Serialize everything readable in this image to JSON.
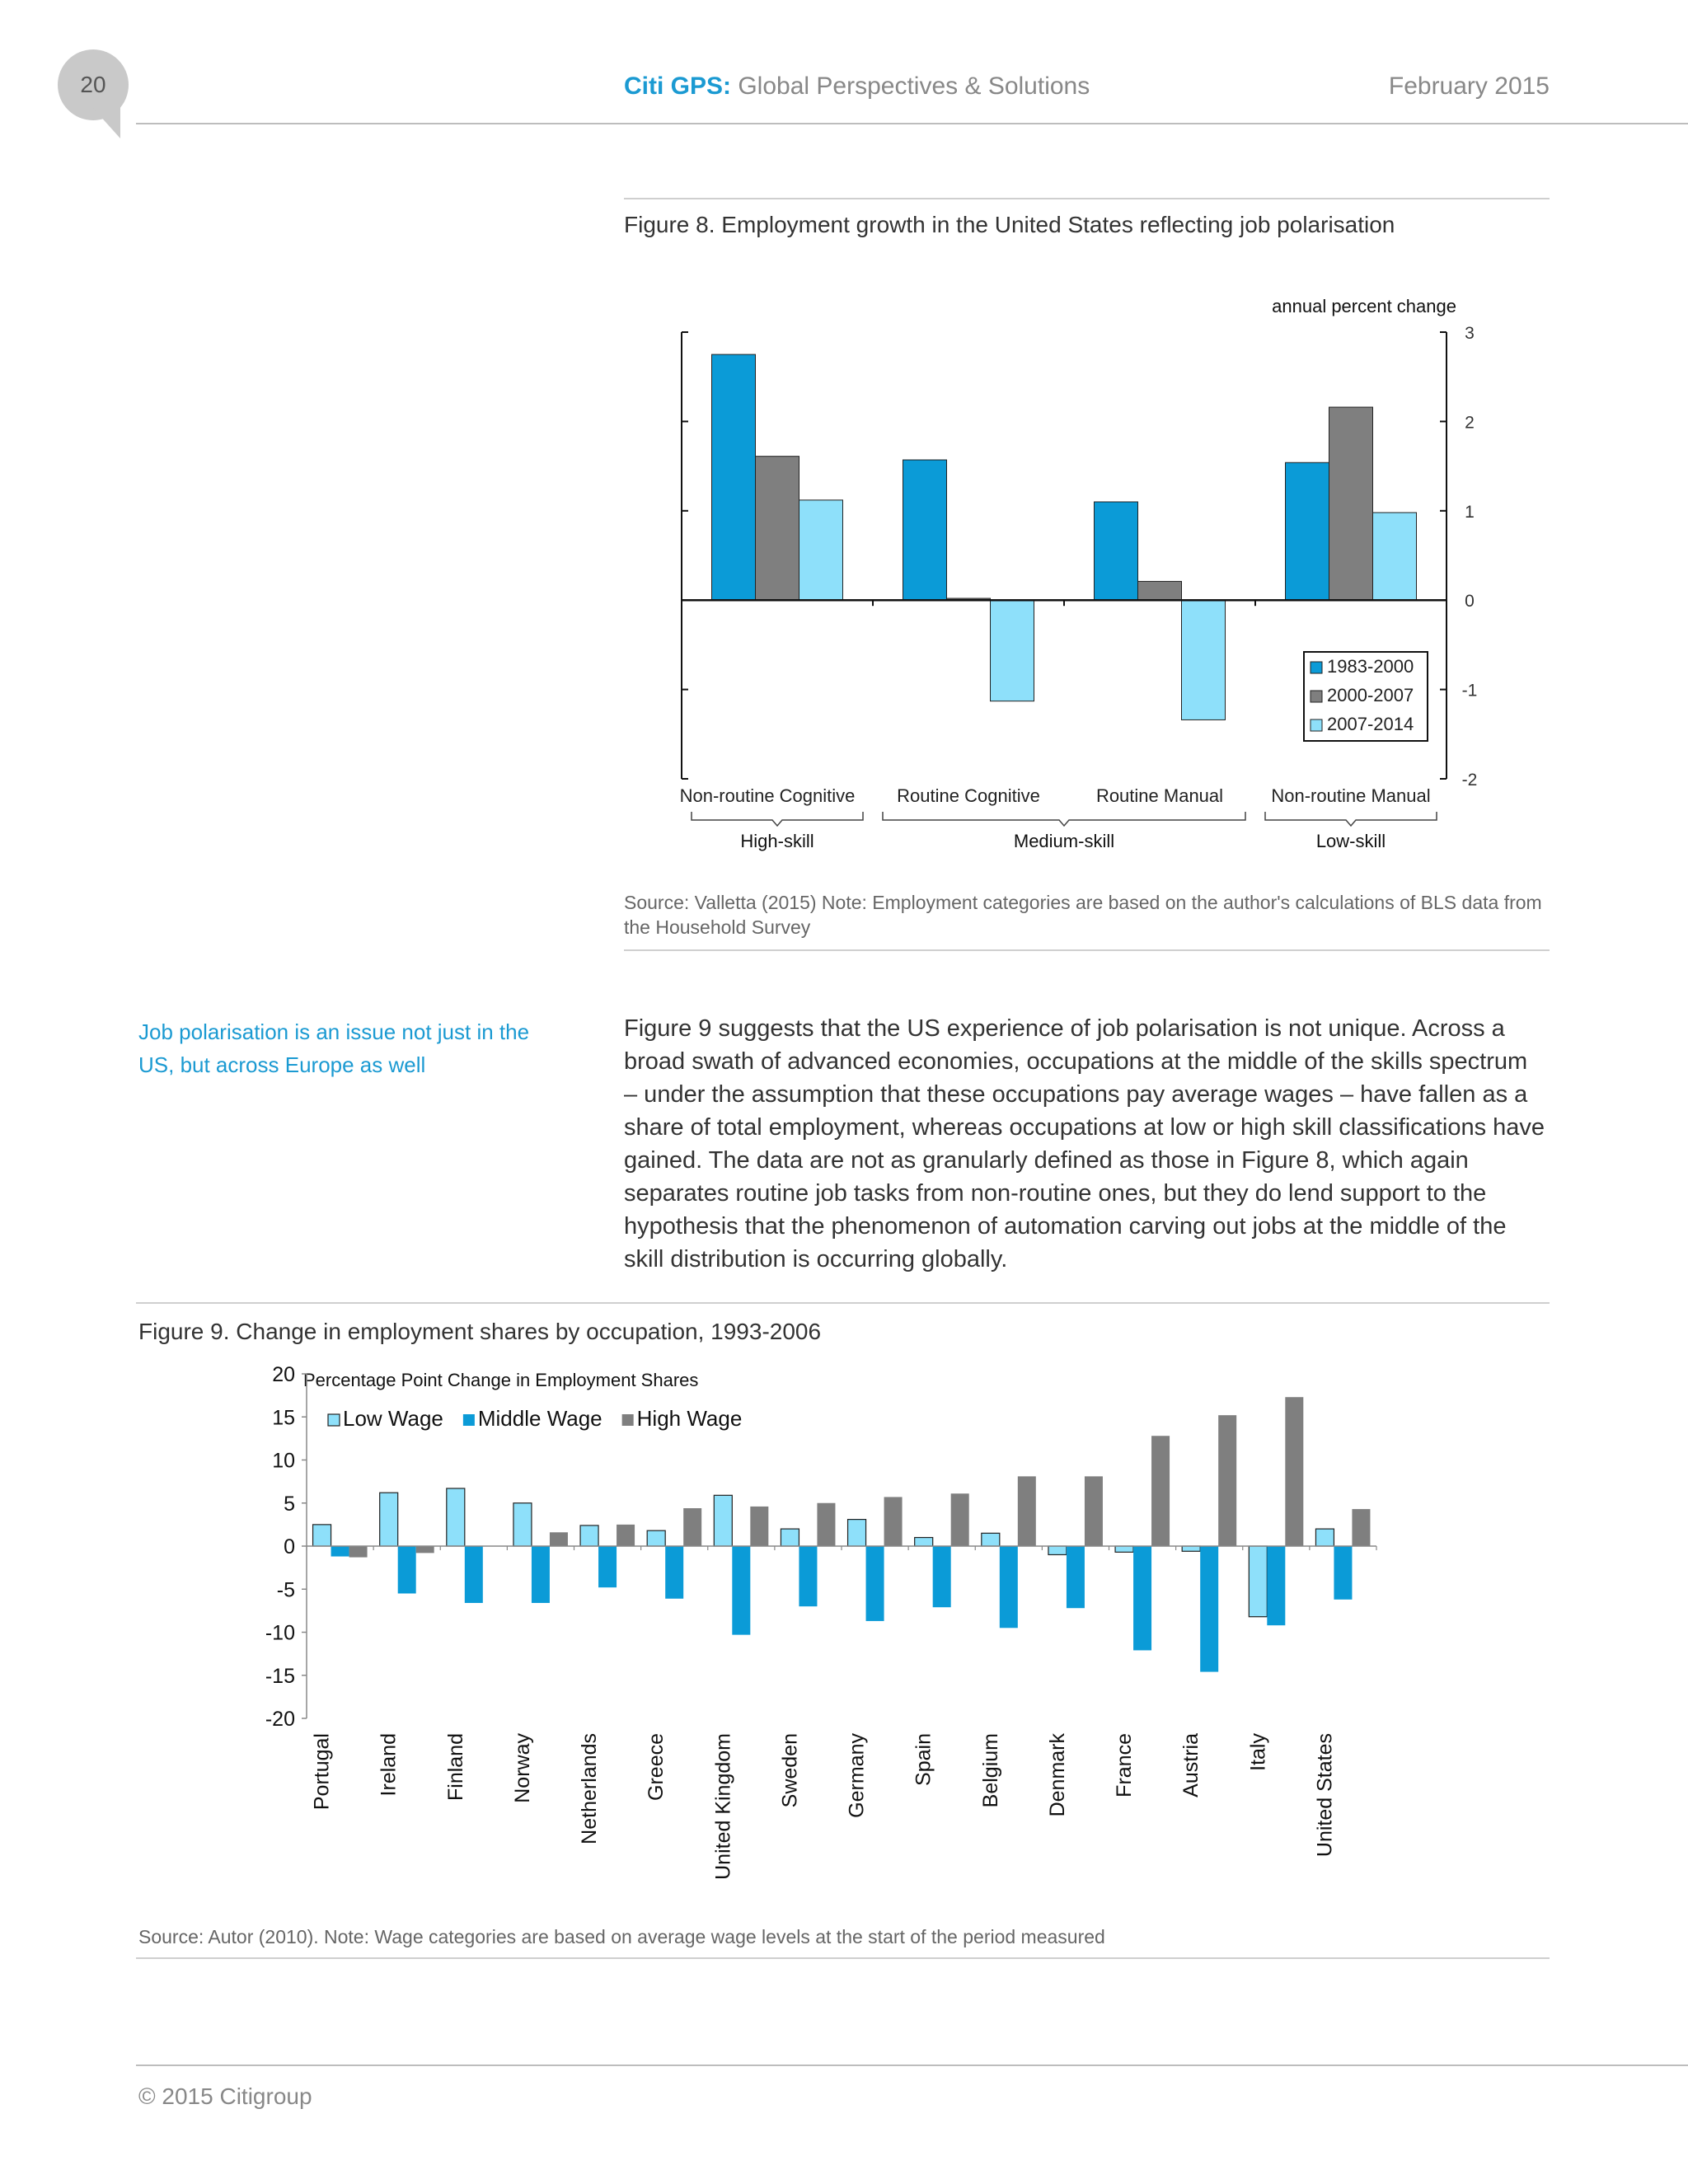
{
  "header": {
    "page_number": "20",
    "brand_bold": "Citi GPS:",
    "brand_rest": " Global Perspectives & Solutions",
    "date": "February 2015"
  },
  "figure8": {
    "title": "Figure 8. Employment growth in the United States reflecting job polarisation",
    "source": "Source: Valletta (2015)  Note: Employment categories are based on the author's calculations of BLS data from the Household Survey"
  },
  "sidebar_note": "Job polarisation is an issue not just in the US, but across Europe as well",
  "body_paragraph": "Figure 9 suggests that the US experience of job polarisation is not unique. Across a broad swath of advanced economies, occupations at the middle of the skills spectrum – under the assumption that these occupations pay average wages – have fallen as a share of total employment, whereas occupations at low or high skill classifications have gained. The data are not as granularly defined as those in Figure 8, which again separates routine job tasks from non-routine ones, but they do lend support to the hypothesis that the phenomenon of automation carving out jobs at the middle of the skill distribution is occurring globally.",
  "figure9": {
    "title": "Figure 9. Change in employment shares by occupation, 1993-2006",
    "source": "Source: Autor (2010). Note:  Wage categories are based on average wage levels at the start of the period measured"
  },
  "footer": "© 2015 Citigroup",
  "chart_data": [
    {
      "type": "bar",
      "title": "",
      "ylabel": "annual percent change",
      "y_axis_side": "right",
      "ylim": [
        -2,
        3
      ],
      "yticks": [
        -2,
        -1,
        0,
        1,
        2,
        3
      ],
      "categories": [
        "Non-routine Cognitive",
        "Routine Cognitive",
        "Routine Manual",
        "Non-routine Manual"
      ],
      "groups": [
        {
          "label": "High-skill",
          "categories": [
            "Non-routine Cognitive"
          ]
        },
        {
          "label": "Medium-skill",
          "categories": [
            "Routine Cognitive",
            "Routine Manual"
          ]
        },
        {
          "label": "Low-skill",
          "categories": [
            "Non-routine Manual"
          ]
        }
      ],
      "series": [
        {
          "name": "1983-2000",
          "color": "#0b9bd7",
          "values": [
            2.75,
            1.57,
            1.1,
            1.54
          ]
        },
        {
          "name": "2000-2007",
          "color": "#7f7f7f",
          "values": [
            1.61,
            0.02,
            0.21,
            2.16
          ]
        },
        {
          "name": "2007-2014",
          "color": "#8ee0fa",
          "values": [
            1.12,
            -1.13,
            -1.34,
            0.98
          ]
        }
      ],
      "legend_position": "bottom-right"
    },
    {
      "type": "bar",
      "title": "Percentage Point Change in Employment Shares",
      "ylim": [
        -20,
        20
      ],
      "yticks": [
        -20,
        -15,
        -10,
        -5,
        0,
        5,
        10,
        15,
        20
      ],
      "categories": [
        "Portugal",
        "Ireland",
        "Finland",
        "Norway",
        "Netherlands",
        "Greece",
        "United Kingdom",
        "Sweden",
        "Germany",
        "Spain",
        "Belgium",
        "Denmark",
        "France",
        "Austria",
        "Italy",
        "United States"
      ],
      "series": [
        {
          "name": "Low Wage",
          "color": "#8ee0fa",
          "values": [
            2.5,
            6.2,
            6.7,
            5.0,
            2.4,
            1.8,
            5.9,
            2.0,
            3.1,
            1.0,
            1.5,
            -1.0,
            -0.7,
            -0.6,
            -8.2,
            2.0
          ]
        },
        {
          "name": "Middle Wage",
          "color": "#0b9bd7",
          "values": [
            -1.2,
            -5.5,
            -6.6,
            -6.6,
            -4.8,
            -6.1,
            -10.3,
            -7.0,
            -8.7,
            -7.1,
            -9.5,
            -7.2,
            -12.1,
            -14.6,
            -9.2,
            -6.2
          ]
        },
        {
          "name": "High Wage",
          "color": "#7f7f7f",
          "values": [
            -1.3,
            -0.8,
            0.0,
            1.6,
            2.5,
            4.4,
            4.6,
            5.0,
            5.7,
            6.1,
            8.1,
            8.1,
            12.8,
            15.2,
            17.3,
            4.3
          ]
        }
      ],
      "legend_position": "top-left"
    }
  ]
}
